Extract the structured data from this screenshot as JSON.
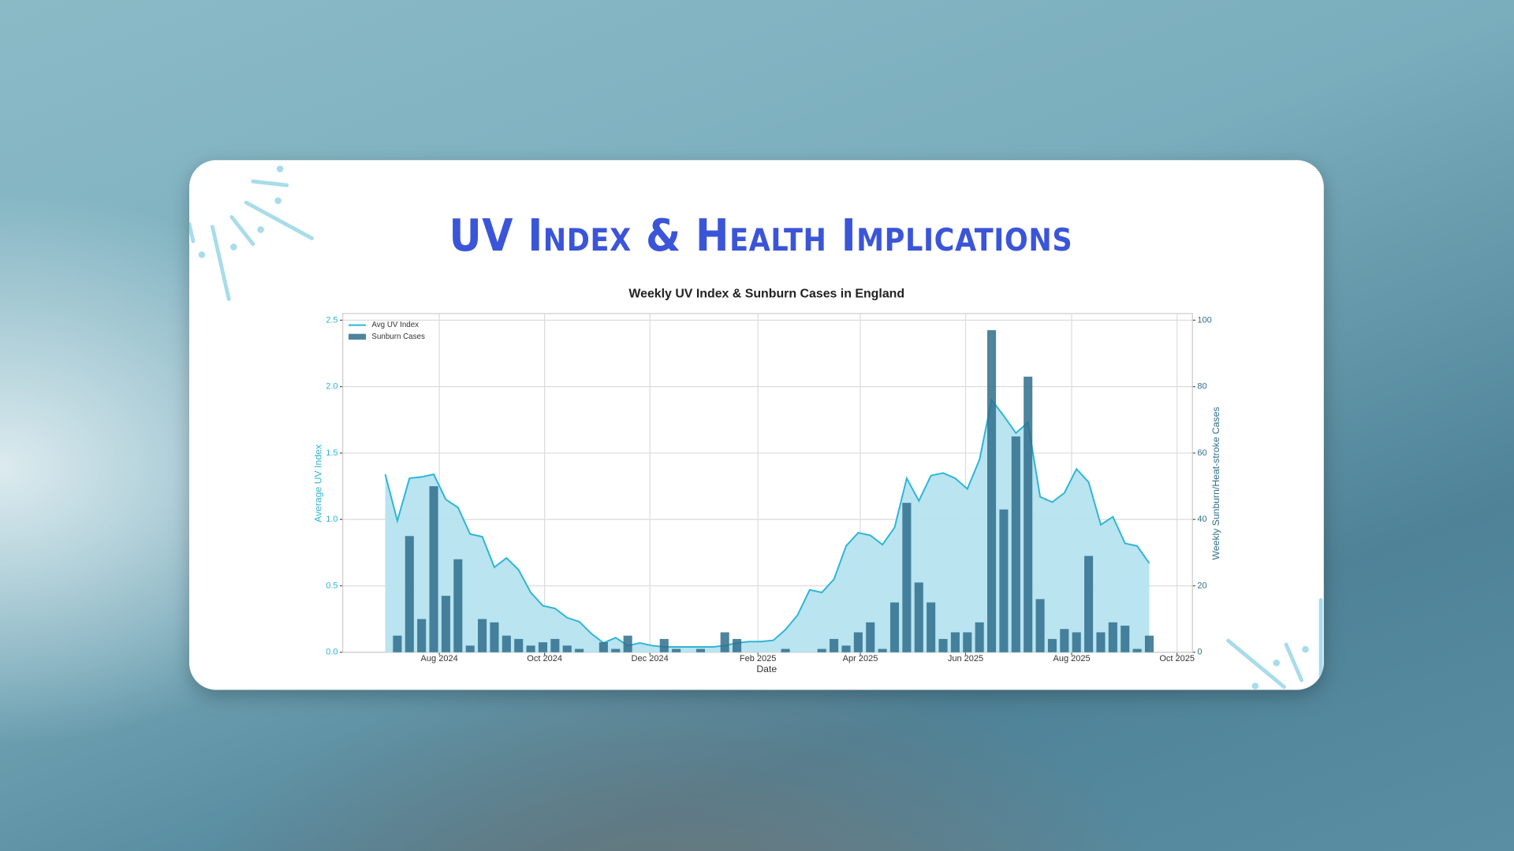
{
  "slide": {
    "title": "UV Index & Health Implications"
  },
  "chart_data": {
    "type": "bar-line",
    "title": "Weekly UV Index & Sunburn Cases in England",
    "xlabel": "Date",
    "ylabel": "Average UV Index",
    "y2label": "Weekly Sunburn/Heat-stroke Cases",
    "categories": [
      null,
      null,
      null,
      null,
      null,
      null,
      null,
      null,
      null,
      null,
      null,
      null,
      null,
      null,
      null,
      null,
      null,
      null,
      null,
      null,
      null,
      null,
      null,
      null,
      null,
      null,
      null,
      null,
      null,
      null,
      null,
      null,
      null,
      null,
      null,
      null,
      null,
      null,
      null,
      null,
      null,
      null,
      null,
      null,
      null,
      null,
      null,
      null,
      null,
      null,
      null,
      null,
      null,
      null,
      null,
      null,
      null,
      null,
      null,
      null,
      null,
      null,
      null,
      null
    ],
    "xlim": [
      -3.5,
      66.56
    ],
    "xticks": [
      {
        "value": 4.46,
        "label": "Aug 2024"
      },
      {
        "value": 13.14,
        "label": "Oct 2024"
      },
      {
        "value": 21.82,
        "label": "Dec 2024"
      },
      {
        "value": 30.73,
        "label": "Feb 2025"
      },
      {
        "value": 39.17,
        "label": "Apr 2025"
      },
      {
        "value": 47.85,
        "label": "Jun 2025"
      },
      {
        "value": 56.6,
        "label": "Aug 2025"
      },
      {
        "value": 65.29,
        "label": "Oct 2025"
      }
    ],
    "ylim": [
      0,
      2.55
    ],
    "yticks": [
      {
        "value": 0,
        "label": "0.0"
      },
      0.5,
      {
        "value": 1,
        "label": "1.0"
      },
      1.5,
      {
        "value": 2,
        "label": "2.0"
      },
      2.5
    ],
    "y2lim": [
      0,
      102
    ],
    "y2ticks": [
      0,
      20,
      40,
      60,
      80,
      100
    ],
    "grid": true,
    "legend": "upper left",
    "series": [
      {
        "name": "Avg UV Index",
        "type": "line",
        "color": "#2cb5d5",
        "fill": "#b5e3ef",
        "values": [
          1.34,
          0.99,
          1.31,
          1.32,
          1.34,
          1.15,
          1.09,
          0.89,
          0.87,
          0.64,
          0.71,
          0.62,
          0.45,
          0.35,
          0.33,
          0.26,
          0.23,
          0.14,
          0.07,
          0.11,
          0.05,
          0.07,
          0.05,
          0.04,
          0.04,
          0.04,
          0.04,
          0.04,
          0.05,
          0.07,
          0.08,
          0.08,
          0.09,
          0.17,
          0.28,
          0.47,
          0.45,
          0.55,
          0.8,
          0.9,
          0.88,
          0.81,
          0.94,
          1.31,
          1.14,
          1.33,
          1.35,
          1.31,
          1.23,
          1.45,
          1.9,
          1.78,
          1.65,
          1.73,
          1.17,
          1.13,
          1.2,
          1.38,
          1.28,
          0.96,
          1.02,
          0.82,
          0.8,
          0.67
        ]
      },
      {
        "name": "Sunburn Cases",
        "type": "bar",
        "axis": "y2",
        "color": "#2f6f8c",
        "values": [
          0,
          5,
          35,
          10,
          50,
          17,
          28,
          2,
          10,
          9,
          5,
          4,
          2,
          3,
          4,
          2,
          1,
          0,
          3,
          1,
          5,
          0,
          0,
          4,
          1,
          0,
          1,
          0,
          6,
          4,
          0,
          0,
          0,
          1,
          0,
          0,
          1,
          4,
          2,
          6,
          9,
          1,
          15,
          45,
          21,
          15,
          4,
          6,
          6,
          9,
          97,
          43,
          65,
          83,
          16,
          4,
          7,
          6,
          29,
          6,
          9,
          8,
          1,
          5
        ]
      }
    ]
  }
}
